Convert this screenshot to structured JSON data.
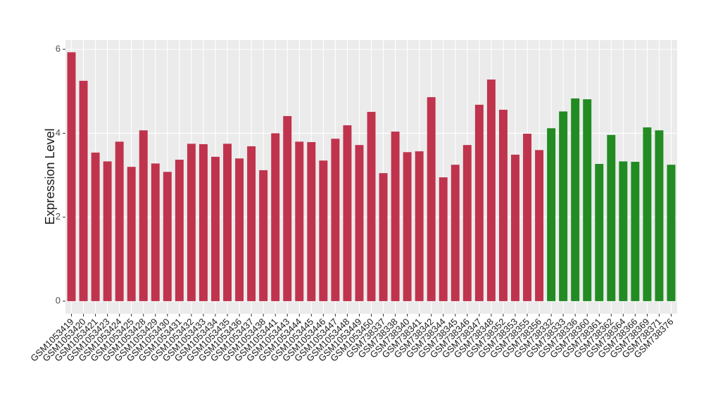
{
  "chart_data": {
    "type": "bar",
    "y_label": "Expression Level",
    "categories": [
      "GSM1053419",
      "GSM1053420",
      "GSM1053421",
      "GSM1053423",
      "GSM1053424",
      "GSM1053425",
      "GSM1053428",
      "GSM1053429",
      "GSM1053430",
      "GSM1053431",
      "GSM1053432",
      "GSM1053433",
      "GSM1053434",
      "GSM1053435",
      "GSM1053436",
      "GSM1053437",
      "GSM1053438",
      "GSM1053441",
      "GSM1053443",
      "GSM1053444",
      "GSM1053445",
      "GSM1053446",
      "GSM1053447",
      "GSM1053448",
      "GSM1053449",
      "GSM1053450",
      "GSM738337",
      "GSM738338",
      "GSM738340",
      "GSM738341",
      "GSM738342",
      "GSM738344",
      "GSM738345",
      "GSM738346",
      "GSM738347",
      "GSM738348",
      "GSM738352",
      "GSM738353",
      "GSM738355",
      "GSM738356",
      "GSM738332",
      "GSM738333",
      "GSM738336",
      "GSM738360",
      "GSM738361",
      "GSM738362",
      "GSM738364",
      "GSM738366",
      "GSM738369",
      "GSM738371",
      "GSM738376"
    ],
    "values": [
      5.93,
      5.25,
      3.54,
      3.33,
      3.8,
      3.2,
      4.07,
      3.28,
      3.08,
      3.37,
      3.75,
      3.74,
      3.44,
      3.75,
      3.4,
      3.69,
      3.12,
      4.0,
      4.41,
      3.8,
      3.79,
      3.35,
      3.87,
      4.19,
      3.72,
      4.51,
      3.05,
      4.04,
      3.55,
      3.57,
      4.86,
      2.95,
      3.25,
      3.72,
      4.68,
      5.28,
      4.56,
      3.49,
      3.99,
      3.6,
      4.12,
      4.52,
      4.83,
      4.81,
      3.27,
      3.96,
      3.33,
      3.32,
      4.14,
      4.07,
      3.25
    ],
    "colors": [
      "#c0334d",
      "#c0334d",
      "#c0334d",
      "#c0334d",
      "#c0334d",
      "#c0334d",
      "#c0334d",
      "#c0334d",
      "#c0334d",
      "#c0334d",
      "#c0334d",
      "#c0334d",
      "#c0334d",
      "#c0334d",
      "#c0334d",
      "#c0334d",
      "#c0334d",
      "#c0334d",
      "#c0334d",
      "#c0334d",
      "#c0334d",
      "#c0334d",
      "#c0334d",
      "#c0334d",
      "#c0334d",
      "#c0334d",
      "#c0334d",
      "#c0334d",
      "#c0334d",
      "#c0334d",
      "#c0334d",
      "#c0334d",
      "#c0334d",
      "#c0334d",
      "#c0334d",
      "#c0334d",
      "#c0334d",
      "#c0334d",
      "#c0334d",
      "#c0334d",
      "#228b22",
      "#228b22",
      "#228b22",
      "#228b22",
      "#228b22",
      "#228b22",
      "#228b22",
      "#228b22",
      "#228b22",
      "#228b22",
      "#228b22"
    ],
    "ylim": [
      -0.3,
      6.22
    ],
    "yticks": [
      0,
      2,
      4,
      6
    ],
    "grid": true
  }
}
